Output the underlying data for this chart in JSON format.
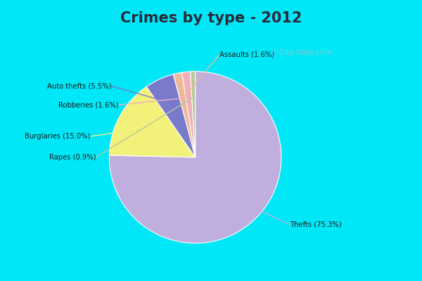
{
  "title": "Crimes by type - 2012",
  "labels": [
    "Thefts",
    "Burglaries",
    "Auto thefts",
    "Assaults",
    "Robberies",
    "Rapes"
  ],
  "values": [
    75.3,
    15.0,
    5.5,
    1.6,
    1.6,
    0.9
  ],
  "pct_labels": [
    "Thefts (75.3%)",
    "Burglaries (15.0%)",
    "Auto thefts (5.5%)",
    "Assaults (1.6%)",
    "Robberies (1.6%)",
    "Rapes (0.9%)"
  ],
  "colors": [
    "#c0aede",
    "#f2f27a",
    "#7a7acd",
    "#f0b89a",
    "#f0b0b8",
    "#b8c898"
  ],
  "bg_cyan": "#00e8f8",
  "bg_center": "#d4ede0",
  "title_color": "#2a2a3a",
  "label_color": "#1a1a1a",
  "figsize": [
    6.0,
    4.0
  ],
  "dpi": 100,
  "startangle": 90
}
